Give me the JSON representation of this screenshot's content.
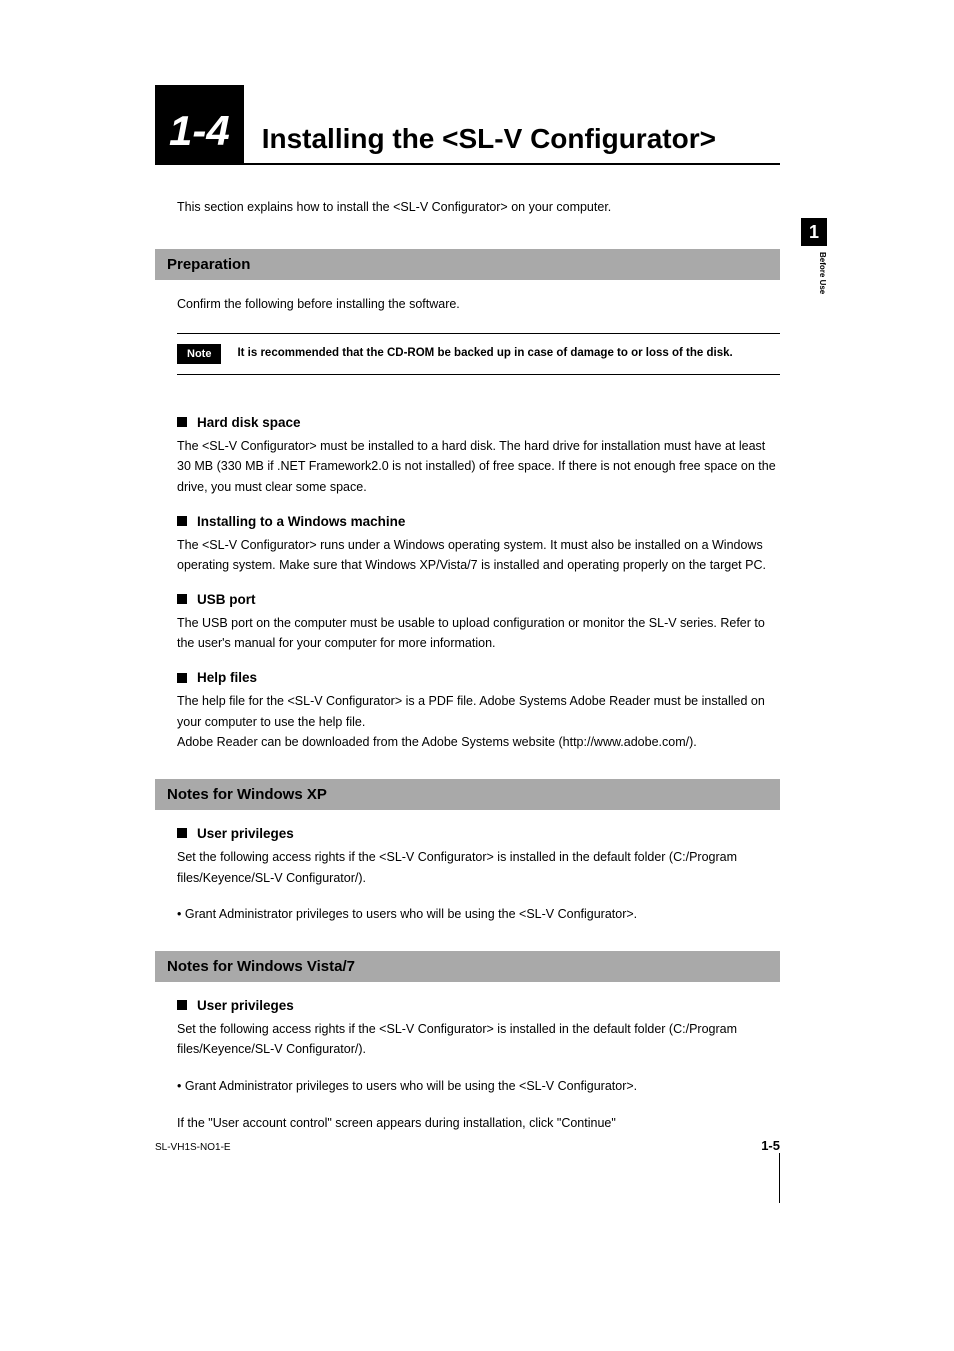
{
  "section": {
    "number": "1-4",
    "title": "Installing the <SL-V Configurator>",
    "intro": "This section explains how to install the <SL-V Configurator> on your computer."
  },
  "preparation": {
    "heading": "Preparation",
    "intro": "Confirm the following before installing the software.",
    "note_label": "Note",
    "note_text": "It is recommended that the CD-ROM be backed up in case of damage to or loss of the disk.",
    "items": [
      {
        "heading": "Hard disk space",
        "body": "The <SL-V Configurator> must be installed to a hard disk. The hard drive for installation must have at least 30 MB (330 MB if .NET Framework2.0 is not installed) of free space. If there is not enough free space on the drive, you must clear some space."
      },
      {
        "heading": "Installing to a Windows machine",
        "body": "The <SL-V Configurator> runs under a Windows operating system. It must also be installed on a Windows operating system. Make sure that Windows XP/Vista/7 is installed and operating properly on the target PC."
      },
      {
        "heading": "USB port",
        "body": "The USB port on the computer must be usable to upload configuration or monitor the SL-V series. Refer to the user's manual for your computer for more information."
      },
      {
        "heading": "Help files",
        "body": "The help file for the <SL-V Configurator> is a PDF file. Adobe Systems Adobe Reader must be installed on your computer to use the help file.\nAdobe Reader can be downloaded from the Adobe Systems website (http://www.adobe.com/)."
      }
    ]
  },
  "notes_xp": {
    "heading": "Notes for Windows XP",
    "priv_heading": "User privileges",
    "priv_body": "Set the following access rights if the <SL-V Configurator> is installed in the default folder (C:/Program files/Keyence/SL-V Configurator/).",
    "bullet": "• Grant Administrator privileges to users who will be using the <SL-V Configurator>."
  },
  "notes_vista": {
    "heading": "Notes for Windows Vista/7",
    "priv_heading": "User privileges",
    "priv_body": "Set the following access rights if the <SL-V Configurator> is installed in the default folder (C:/Program files/Keyence/SL-V Configurator/).",
    "bullet": "• Grant Administrator privileges to users who will be using the <SL-V Configurator>.",
    "extra": "If the \"User account control\" screen appears during installation, click \"Continue\""
  },
  "side_tab": {
    "number": "1",
    "label": "Before Use"
  },
  "footer": {
    "left": "SL-VH1S-NO1-E",
    "right": "1-5"
  }
}
